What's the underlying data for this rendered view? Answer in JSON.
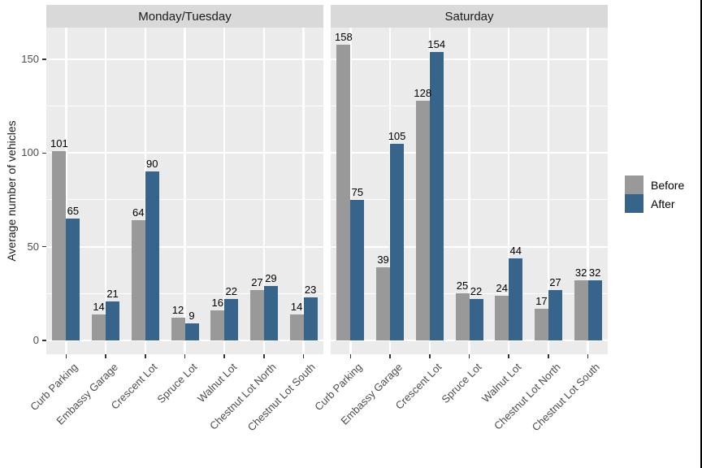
{
  "chart_data": {
    "type": "bar",
    "title": "",
    "ylabel": "Average number of vehicles",
    "categories": [
      "Curb Parking",
      "Embassy Garage",
      "Crescent Lot",
      "Spruce Lot",
      "Walnut Lot",
      "Chestnut Lot North",
      "Chestnut Lot South"
    ],
    "yticks": [
      "0",
      "50",
      "100",
      "150"
    ],
    "ylim": [
      0,
      174
    ],
    "grid": true,
    "bar_value_labels": true,
    "legend_position": "right",
    "facets": [
      {
        "title": "Monday/Tuesday",
        "series": [
          {
            "name": "Before",
            "values": [
              101,
              14,
              64,
              12,
              16,
              27,
              14
            ]
          },
          {
            "name": "After",
            "values": [
              65,
              21,
              90,
              9,
              22,
              29,
              23
            ]
          }
        ]
      },
      {
        "title": "Saturday",
        "series": [
          {
            "name": "Before",
            "values": [
              158,
              39,
              128,
              25,
              24,
              17,
              32
            ]
          },
          {
            "name": "After",
            "values": [
              75,
              105,
              154,
              22,
              44,
              27,
              32
            ]
          }
        ]
      }
    ],
    "legend": [
      {
        "label": "Before",
        "color": "#999999"
      },
      {
        "label": "After",
        "color": "#36648B"
      }
    ],
    "colors": {
      "before_bar": "#999999",
      "after_bar": "#36648B",
      "panel_background": "#EBEBEB",
      "strip_background": "#D9D9D9",
      "gridline": "#FFFFFF",
      "axis_text": "#4D4D4D",
      "value_label_text": "#000000"
    }
  }
}
